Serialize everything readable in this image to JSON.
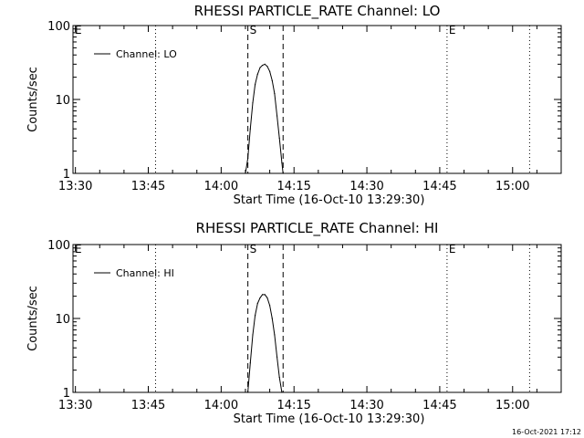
{
  "chart_data": [
    {
      "type": "line",
      "title": "RHESSI PARTICLE_RATE Channel: LO",
      "xlabel": "Start Time (16-Oct-10 13:29:30)",
      "ylabel": "Counts/sec",
      "y_scale": "log",
      "ylim": [
        1,
        100
      ],
      "xlim": [
        "13:29:30",
        "15:10:00"
      ],
      "x_ticks": [
        "13:30",
        "13:45",
        "14:00",
        "14:15",
        "14:30",
        "14:45",
        "15:00"
      ],
      "y_ticks": [
        "1",
        "10",
        "100"
      ],
      "legend": {
        "placement": "top-left",
        "entries": [
          "Channel: LO"
        ]
      },
      "grid": false,
      "markers": [
        {
          "label": "E",
          "time": "13:29:30",
          "style": "dotted"
        },
        {
          "label": "",
          "time": "13:46:30",
          "style": "dotted"
        },
        {
          "label": "S",
          "time": "14:05:30",
          "style": "dashed"
        },
        {
          "label": "",
          "time": "14:12:45",
          "style": "dashed"
        },
        {
          "label": "E",
          "time": "14:46:30",
          "style": "dotted"
        },
        {
          "label": "",
          "time": "15:03:30",
          "style": "dotted"
        }
      ],
      "series": [
        {
          "name": "Channel: LO",
          "x": [
            "14:05:00",
            "14:05:30",
            "14:06:00",
            "14:06:30",
            "14:07:00",
            "14:07:30",
            "14:08:00",
            "14:08:30",
            "14:09:00",
            "14:09:30",
            "14:10:00",
            "14:10:30",
            "14:11:00",
            "14:11:30",
            "14:12:00",
            "14:12:30",
            "14:12:45"
          ],
          "values": [
            1.0,
            1.6,
            4.0,
            9.0,
            16,
            22,
            27,
            29,
            30,
            28,
            24,
            18,
            12,
            6,
            3.0,
            1.4,
            1.0
          ]
        }
      ]
    },
    {
      "type": "line",
      "title": "RHESSI PARTICLE_RATE Channel: HI",
      "xlabel": "Start Time (16-Oct-10 13:29:30)",
      "ylabel": "Counts/sec",
      "y_scale": "log",
      "ylim": [
        1,
        100
      ],
      "xlim": [
        "13:29:30",
        "15:10:00"
      ],
      "x_ticks": [
        "13:30",
        "13:45",
        "14:00",
        "14:15",
        "14:30",
        "14:45",
        "15:00"
      ],
      "y_ticks": [
        "1",
        "10",
        "100"
      ],
      "legend": {
        "placement": "top-left",
        "entries": [
          "Channel: HI"
        ]
      },
      "grid": false,
      "markers": [
        {
          "label": "E",
          "time": "13:29:30",
          "style": "dotted"
        },
        {
          "label": "",
          "time": "13:46:30",
          "style": "dotted"
        },
        {
          "label": "S",
          "time": "14:05:30",
          "style": "dashed"
        },
        {
          "label": "",
          "time": "14:12:45",
          "style": "dashed"
        },
        {
          "label": "E",
          "time": "14:46:30",
          "style": "dotted"
        },
        {
          "label": "",
          "time": "15:03:30",
          "style": "dotted"
        }
      ],
      "series": [
        {
          "name": "Channel: HI",
          "x": [
            "14:05:30",
            "14:06:00",
            "14:06:30",
            "14:07:00",
            "14:07:30",
            "14:08:00",
            "14:08:30",
            "14:09:00",
            "14:09:30",
            "14:10:00",
            "14:10:30",
            "14:11:00",
            "14:11:30",
            "14:12:00",
            "14:12:30"
          ],
          "values": [
            1.0,
            2.5,
            6.0,
            11,
            16,
            19,
            21,
            21,
            19,
            15,
            10,
            6,
            3.0,
            1.6,
            1.0
          ]
        }
      ]
    }
  ],
  "footer": {
    "timestamp": "16-Oct-2021 17:12"
  }
}
